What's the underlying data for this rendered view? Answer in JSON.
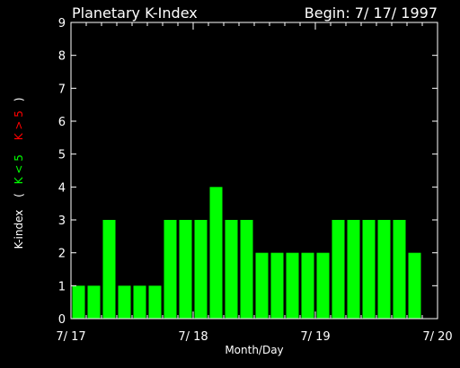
{
  "chart_data": {
    "type": "bar",
    "title": "Planetary K-Index",
    "begin_label": "Begin: 7/ 17/ 1997",
    "xlabel": "Month/Day",
    "ylabel": {
      "prefix": "K-index",
      "open": "(",
      "low": "K < 5",
      "high": "K > 5",
      "close": ")"
    },
    "ylim": [
      0,
      9
    ],
    "y_ticks": [
      "0",
      "1",
      "2",
      "3",
      "4",
      "5",
      "6",
      "7",
      "8",
      "9"
    ],
    "x_ticks": [
      "7/ 17",
      "7/ 18",
      "7/ 19",
      "7/ 20"
    ],
    "periods_per_day": 8,
    "values": [
      1,
      1,
      3,
      1,
      1,
      1,
      3,
      3,
      3,
      4,
      3,
      3,
      2,
      2,
      2,
      2,
      2,
      3,
      3,
      3,
      3,
      3,
      2
    ],
    "colors": {
      "background": "#000000",
      "axes": "#ffffff",
      "bar_low": "#00ff00",
      "bar_high": "#ff0000",
      "label_green": "#00ff00",
      "label_red": "#ff0000"
    }
  }
}
